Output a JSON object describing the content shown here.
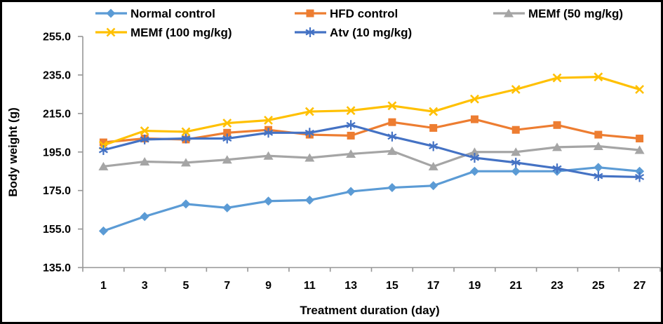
{
  "chart_data": {
    "type": "line",
    "title": "",
    "xlabel": "Treatment duration (day)",
    "ylabel": "Body weight (g)",
    "x": [
      1,
      3,
      5,
      7,
      9,
      11,
      13,
      15,
      17,
      19,
      21,
      23,
      25,
      27
    ],
    "ylim": [
      135,
      255
    ],
    "ytick_step": 20,
    "ytick_labels": [
      "135.0",
      "155.0",
      "175.0",
      "195.0",
      "215.0",
      "235.0",
      "255.0"
    ],
    "grid": false,
    "legend_position": "top",
    "axis_color": "#969696",
    "background": "#FFFFFF",
    "frame_border_color": "#000000",
    "series": [
      {
        "name": "Normal control",
        "color": "#5B9BD5",
        "marker": "diamond",
        "values": [
          154,
          161.5,
          168,
          166,
          169.5,
          170,
          174.5,
          176.5,
          177.5,
          185,
          185,
          185,
          187,
          185
        ]
      },
      {
        "name": "HFD control",
        "color": "#ED7D31",
        "marker": "square",
        "values": [
          200,
          202,
          201.5,
          205,
          206.5,
          204,
          203.5,
          210.5,
          207.5,
          212,
          206.5,
          209,
          204,
          202
        ]
      },
      {
        "name": "MEMf (50 mg/kg)",
        "color": "#A5A5A5",
        "marker": "triangle",
        "values": [
          187.5,
          190,
          189.5,
          191,
          193,
          192,
          194,
          195.5,
          187.5,
          195,
          195,
          197.5,
          198,
          196
        ]
      },
      {
        "name": "MEMf (100 mg/kg)",
        "color": "#FFC000",
        "marker": "x",
        "values": [
          198.5,
          206,
          205.5,
          210,
          211.5,
          216,
          216.5,
          219,
          216,
          222.5,
          227.5,
          233.5,
          234,
          227.5
        ]
      },
      {
        "name": "Atv (10 mg/kg)",
        "color": "#4472C4",
        "marker": "asterisk",
        "values": [
          196,
          201.5,
          202,
          202,
          205,
          205,
          209,
          203,
          198,
          192,
          189.5,
          186.5,
          182.5,
          182
        ]
      }
    ]
  }
}
